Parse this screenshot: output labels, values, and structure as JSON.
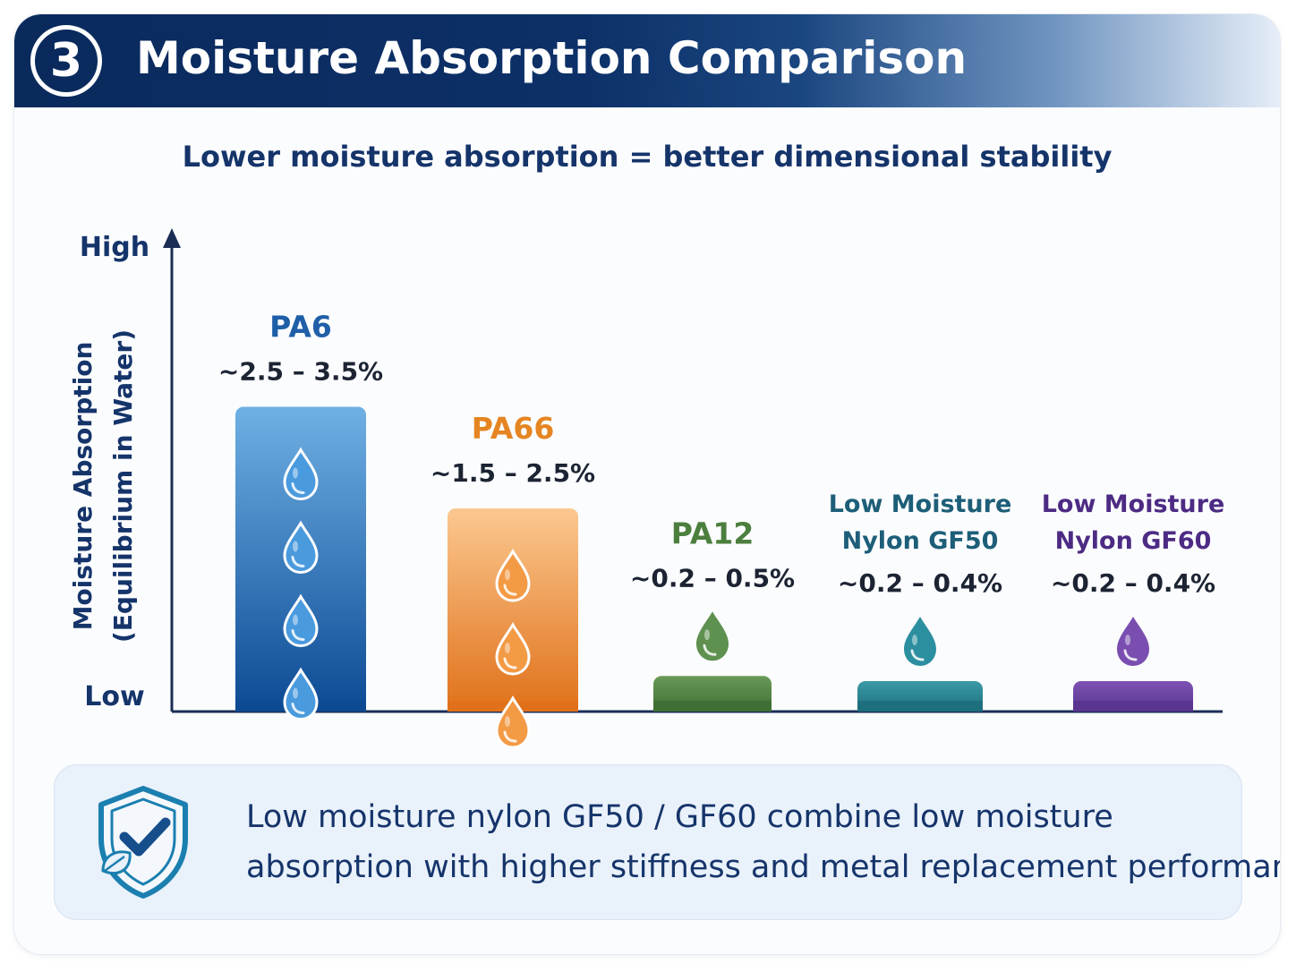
{
  "header": {
    "step_number": "3",
    "title": "Moisture Absorption Comparison"
  },
  "chart_data": {
    "type": "bar",
    "title": "Lower moisture absorption = better dimensional stability",
    "ylabel_line1": "Moisture Absorption",
    "ylabel_line2": "(Equilibrium in Water)",
    "y_high_label": "High",
    "y_low_label": "Low",
    "categories": [
      {
        "name_lines": [
          "PA6"
        ],
        "range_label": "~2.5 – 3.5%",
        "min": 2.5,
        "max": 3.5,
        "value": 3.0,
        "droplets": 4,
        "color_top": "#6fb0e4",
        "color_bottom": "#0c4a94",
        "name_color": "#1f5fa8",
        "drop_fill": "#4a9ade"
      },
      {
        "name_lines": [
          "PA66"
        ],
        "range_label": "~1.5 – 2.5%",
        "min": 1.5,
        "max": 2.5,
        "value": 2.0,
        "droplets": 3,
        "color_top": "#fbc890",
        "color_bottom": "#e0711a",
        "name_color": "#e58522",
        "drop_fill": "#f39a45"
      },
      {
        "name_lines": [
          "PA12"
        ],
        "range_label": "~0.2 – 0.5%",
        "min": 0.2,
        "max": 0.5,
        "value": 0.35,
        "droplets": 1,
        "color_top": "#6a9a58",
        "color_bottom": "#3f6f34",
        "name_color": "#4c7f3e",
        "drop_fill": "#5e9150"
      },
      {
        "name_lines": [
          "Low Moisture",
          "Nylon GF50"
        ],
        "range_label": "~0.2 – 0.4%",
        "min": 0.2,
        "max": 0.4,
        "value": 0.3,
        "droplets": 1,
        "color_top": "#3a9aa6",
        "color_bottom": "#1e6f7e",
        "name_color": "#1d5e78",
        "drop_fill": "#2c8fa0"
      },
      {
        "name_lines": [
          "Low Moisture",
          "Nylon GF60"
        ],
        "range_label": "~0.2 – 0.4%",
        "min": 0.2,
        "max": 0.4,
        "value": 0.3,
        "droplets": 1,
        "color_top": "#7e52b3",
        "color_bottom": "#5a3590",
        "name_color": "#4d2b84",
        "drop_fill": "#7a4eb0"
      }
    ],
    "ylim": [
      0,
      4
    ],
    "grid": false,
    "legend": "none"
  },
  "callout": {
    "icon": "shield-check-leaf-icon",
    "line1": "Low moisture nylon GF50 / GF60 combine low moisture",
    "line2": "absorption with higher stiffness and metal replacement performance."
  },
  "colors": {
    "header_dark": "#0a2a5c",
    "text_navy": "#15346a",
    "axis": "#1a2e55",
    "callout_bg": "#e9f1fa"
  }
}
